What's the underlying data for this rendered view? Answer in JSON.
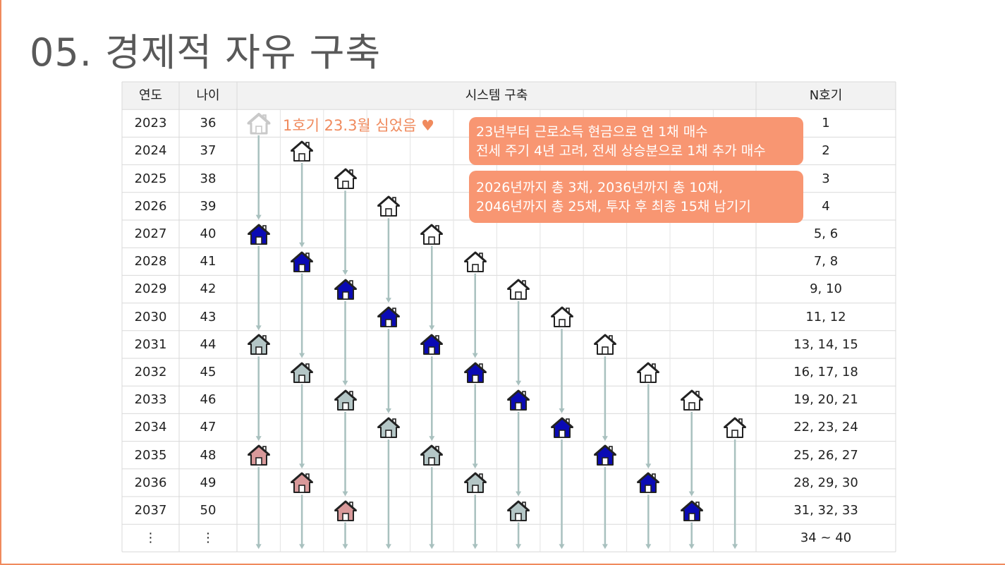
{
  "slide": {
    "title": "05.  경제적 자유 구축"
  },
  "table": {
    "headers": {
      "year": "연도",
      "age": "나이",
      "system": "시스템 구축",
      "count": "N호기"
    },
    "rows": [
      {
        "year": "2023",
        "age": "36",
        "count": "1"
      },
      {
        "year": "2024",
        "age": "37",
        "count": "2"
      },
      {
        "year": "2025",
        "age": "38",
        "count": "3"
      },
      {
        "year": "2026",
        "age": "39",
        "count": "4"
      },
      {
        "year": "2027",
        "age": "40",
        "count": "5, 6"
      },
      {
        "year": "2028",
        "age": "41",
        "count": "7, 8"
      },
      {
        "year": "2029",
        "age": "42",
        "count": "9, 10"
      },
      {
        "year": "2030",
        "age": "43",
        "count": "11, 12"
      },
      {
        "year": "2031",
        "age": "44",
        "count": "13, 14, 15"
      },
      {
        "year": "2032",
        "age": "45",
        "count": "16, 17, 18"
      },
      {
        "year": "2033",
        "age": "46",
        "count": "19, 20, 21"
      },
      {
        "year": "2034",
        "age": "47",
        "count": "22, 23, 24"
      },
      {
        "year": "2035",
        "age": "48",
        "count": "25, 26, 27"
      },
      {
        "year": "2036",
        "age": "49",
        "count": "28, 29, 30"
      },
      {
        "year": "2037",
        "age": "50",
        "count": "31, 32, 33"
      },
      {
        "year": "⋮",
        "age": "⋮",
        "count": "34 ~ 40"
      }
    ]
  },
  "note": {
    "text": "1호기 23.3월 심었음 ♥"
  },
  "callouts": [
    {
      "line1": "23년부터 근로소득 현금으로 연 1채 매수",
      "line2": "전세 주기 4년 고려, 전세 상승분으로 1채 추가 매수"
    },
    {
      "line1": "2026년까지 총 3채,  2036년까지 총 10채,",
      "line2": "2046년까지 총 25채,  투자 후 최종 15채 남기기"
    }
  ],
  "colors": {
    "accent": "#f08a5d",
    "callout": "#f89672",
    "stage_new": "#ffffff",
    "stage_renewal_1": "#0a0ab4",
    "stage_renewal_2": "#b4c6c6",
    "stage_renewal_3": "#d9999a",
    "arrow": "#a9c1bf"
  },
  "houses": [
    {
      "col": 0,
      "start": 0,
      "stages": [
        "faded",
        "blue",
        "gray",
        "pink"
      ]
    },
    {
      "col": 1,
      "start": 1,
      "stages": [
        "white",
        "blue",
        "gray",
        "pink"
      ]
    },
    {
      "col": 2,
      "start": 2,
      "stages": [
        "white",
        "blue",
        "gray",
        "pink"
      ]
    },
    {
      "col": 3,
      "start": 3,
      "stages": [
        "white",
        "blue",
        "gray"
      ]
    },
    {
      "col": 4,
      "start": 4,
      "stages": [
        "white",
        "blue",
        "gray"
      ]
    },
    {
      "col": 5,
      "start": 5,
      "stages": [
        "white",
        "blue",
        "gray"
      ]
    },
    {
      "col": 6,
      "start": 6,
      "stages": [
        "white",
        "blue",
        "gray"
      ]
    },
    {
      "col": 7,
      "start": 7,
      "stages": [
        "white",
        "blue"
      ]
    },
    {
      "col": 8,
      "start": 8,
      "stages": [
        "white",
        "blue"
      ]
    },
    {
      "col": 9,
      "start": 9,
      "stages": [
        "white",
        "blue"
      ]
    },
    {
      "col": 10,
      "start": 10,
      "stages": [
        "white",
        "blue"
      ]
    },
    {
      "col": 11,
      "start": 11,
      "stages": [
        "white"
      ]
    }
  ]
}
